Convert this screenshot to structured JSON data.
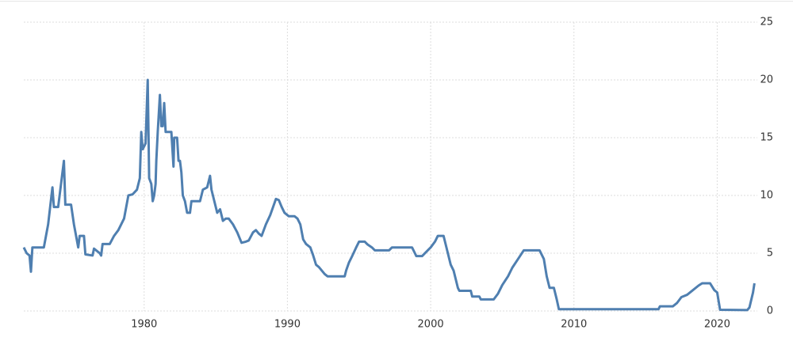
{
  "chart_data": {
    "type": "line",
    "x": [
      1971.6,
      1971.8,
      1972.0,
      1972.1,
      1972.2,
      1973.0,
      1973.3,
      1973.6,
      1973.7,
      1974.0,
      1974.1,
      1974.4,
      1974.5,
      1974.9,
      1975.1,
      1975.4,
      1975.5,
      1975.8,
      1975.9,
      1976.4,
      1976.5,
      1976.9,
      1977.0,
      1977.1,
      1977.6,
      1977.9,
      1978.2,
      1978.6,
      1978.9,
      1979.2,
      1979.5,
      1979.7,
      1979.8,
      1979.9,
      1980.1,
      1980.25,
      1980.35,
      1980.5,
      1980.6,
      1980.7,
      1980.8,
      1980.85,
      1980.95,
      1981.1,
      1981.2,
      1981.3,
      1981.4,
      1981.5,
      1981.9,
      1982.05,
      1982.1,
      1982.3,
      1982.4,
      1982.5,
      1982.6,
      1982.7,
      1982.85,
      1983.0,
      1983.2,
      1983.3,
      1983.9,
      1984.1,
      1984.4,
      1984.6,
      1984.7,
      1984.9,
      1985.1,
      1985.3,
      1985.5,
      1985.7,
      1985.9,
      1986.2,
      1986.5,
      1986.8,
      1987.1,
      1987.3,
      1987.6,
      1987.8,
      1988.0,
      1988.2,
      1988.5,
      1988.8,
      1989.0,
      1989.2,
      1989.4,
      1989.6,
      1989.8,
      1990.1,
      1990.5,
      1990.7,
      1990.9,
      1991.1,
      1991.3,
      1991.6,
      1991.8,
      1992.0,
      1992.2,
      1992.6,
      1992.8,
      1994.0,
      1994.1,
      1994.3,
      1994.5,
      1994.8,
      1995.0,
      1995.4,
      1995.6,
      1995.9,
      1996.1,
      1997.1,
      1997.3,
      1998.7,
      1998.9,
      1999.0,
      1999.4,
      1999.8,
      2000.0,
      2000.3,
      2000.5,
      2000.9,
      2001.1,
      2001.4,
      2001.6,
      2001.9,
      2002.0,
      2002.8,
      2002.9,
      2003.4,
      2003.5,
      2004.4,
      2004.7,
      2005.0,
      2005.4,
      2005.7,
      2006.1,
      2006.5,
      2007.6,
      2007.9,
      2008.1,
      2008.3,
      2008.6,
      2008.8,
      2008.95,
      2015.9,
      2016.0,
      2016.9,
      2017.2,
      2017.5,
      2017.9,
      2018.2,
      2018.7,
      2018.95,
      2019.5,
      2019.8,
      2020.0,
      2020.2,
      2022.1,
      2022.25,
      2022.5,
      2022.6
    ],
    "series": [
      {
        "color": "#4f7fb0",
        "values": [
          5.5,
          5,
          4.8,
          3.4,
          5.5,
          5.5,
          7.5,
          10.7,
          9,
          9,
          10,
          13,
          9.2,
          9.2,
          7.5,
          5.5,
          6.5,
          6.5,
          4.9,
          4.8,
          5.4,
          5,
          4.8,
          5.8,
          5.8,
          6.5,
          7,
          8,
          10,
          10.1,
          10.5,
          11.5,
          15.5,
          14,
          14.5,
          20,
          11.5,
          11,
          9.5,
          10,
          11,
          13,
          15.5,
          18.7,
          16,
          16,
          18,
          15.5,
          15.5,
          12.5,
          15,
          15,
          13,
          13,
          12,
          10,
          9.5,
          8.5,
          8.5,
          9.5,
          9.5,
          10.5,
          10.7,
          11.7,
          10.5,
          9.5,
          8.5,
          8.8,
          7.8,
          8,
          8,
          7.5,
          6.8,
          5.9,
          6,
          6.1,
          6.8,
          7,
          6.7,
          6.5,
          7.5,
          8.3,
          9,
          9.7,
          9.6,
          9,
          8.5,
          8.2,
          8.2,
          8,
          7.5,
          6.2,
          5.8,
          5.5,
          4.8,
          4,
          3.8,
          3.2,
          3,
          3,
          3.5,
          4.2,
          4.7,
          5.5,
          6,
          6,
          5.75,
          5.5,
          5.25,
          5.25,
          5.5,
          5.5,
          5,
          4.75,
          4.75,
          5.25,
          5.5,
          6,
          6.5,
          6.5,
          5.5,
          4,
          3.5,
          2,
          1.75,
          1.75,
          1.25,
          1.25,
          1,
          1,
          1.5,
          2.25,
          3,
          3.75,
          4.5,
          5.25,
          5.25,
          4.5,
          3,
          2,
          2,
          1,
          0.15,
          0.15,
          0.4,
          0.4,
          0.7,
          1.2,
          1.4,
          1.7,
          2.2,
          2.4,
          2.4,
          1.8,
          1.6,
          0.1,
          0.08,
          0.3,
          1.6,
          2.4
        ]
      }
    ],
    "xlim": [
      1971.6,
      2022.8
    ],
    "xticks": [
      1980,
      1990,
      2000,
      2010,
      2020
    ],
    "ylim": [
      0,
      25
    ],
    "yticks": [
      0,
      5,
      10,
      15,
      20,
      25
    ],
    "grid": true
  }
}
